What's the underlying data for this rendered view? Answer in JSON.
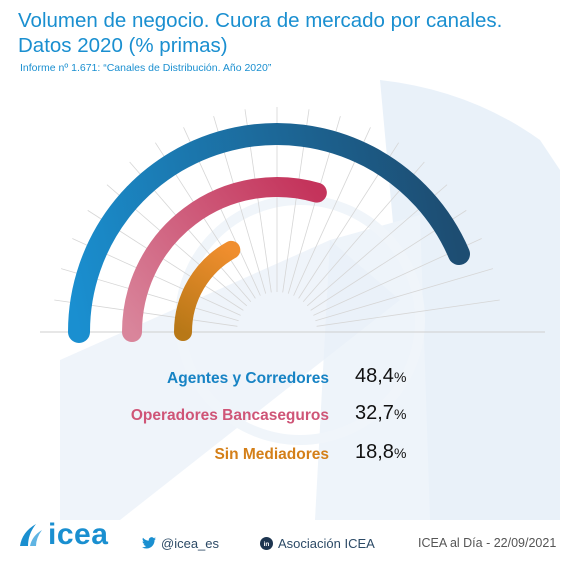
{
  "header": {
    "title_line1": "Volumen de negocio. Cuora de mercado por canales.",
    "title_line2": "Datos 2020 (% primas)",
    "subtitle": "Informe nº 1.671: “Canales de Distribución. Año 2020”"
  },
  "chart_data": {
    "type": "radial-bar",
    "unit": "%",
    "series": [
      {
        "name": "Agentes y Corredores",
        "value": 48.4,
        "value_label": "48,4",
        "color_start": "#1a8fd0",
        "color_end": "#1d4d72",
        "label_color": "#1783c4"
      },
      {
        "name": "Operadores Bancaseguros",
        "value": 32.7,
        "value_label": "32,7",
        "color_start": "#d9859b",
        "color_end": "#c4335b",
        "label_color": "#cf5577"
      },
      {
        "name": "Sin Mediadores",
        "value": 18.8,
        "value_label": "18,8",
        "color_start": "#b87817",
        "color_end": "#f08e2e",
        "label_color": "#d47f18"
      }
    ]
  },
  "footer": {
    "logo_text": "icea",
    "twitter_handle": "@icea_es",
    "linkedin_name": "Asociación ICEA",
    "date_text": "ICEA al Día - 22/09/2021"
  },
  "colors": {
    "brand": "#1a8fd0",
    "arc_track_start": "#f2f2f2"
  },
  "icons": {
    "twitter": "twitter-icon",
    "linkedin": "linkedin-icon",
    "logo": "icea-logo-icon"
  }
}
